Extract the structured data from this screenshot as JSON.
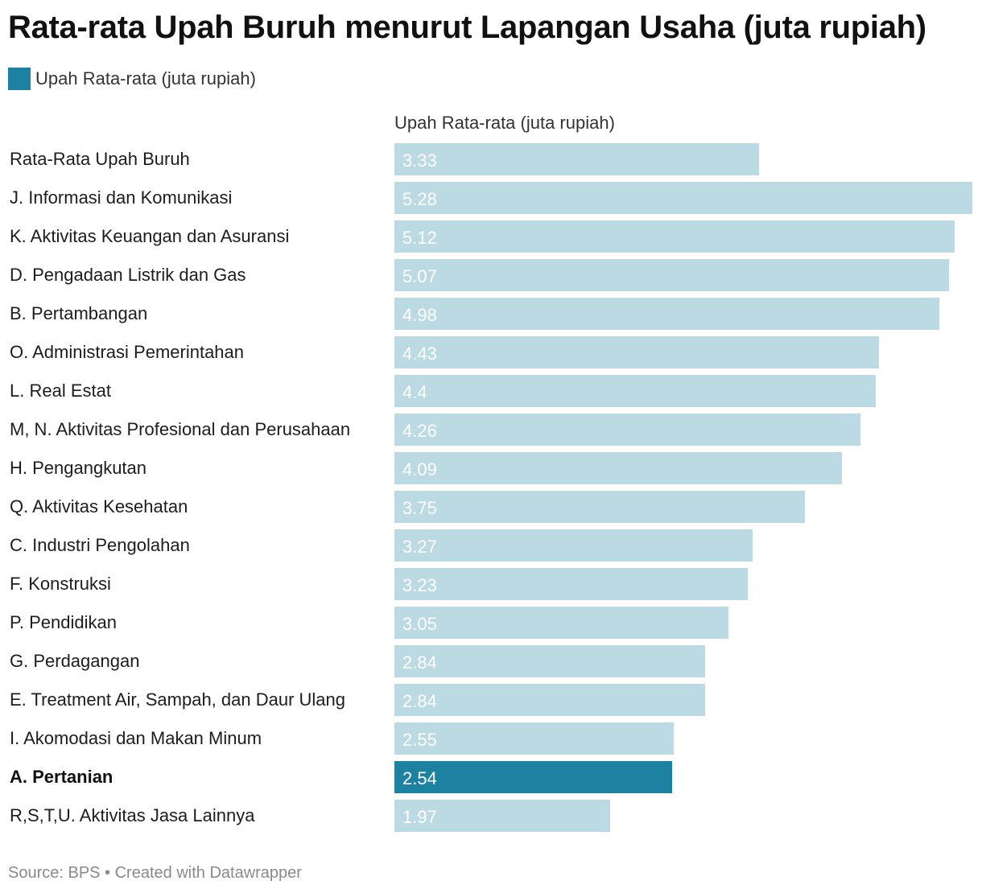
{
  "title": "Rata-rata Upah Buruh menurut Lapangan Usaha (juta rupiah)",
  "legend": {
    "label": "Upah Rata-rata (juta rupiah)",
    "color": "#1d81a2"
  },
  "column_header": "Upah Rata-rata (juta rupiah)",
  "footer": "Source: BPS • Created with Datawrapper",
  "colors": {
    "bar": "#bcdae3",
    "highlight": "#1d81a2"
  },
  "chart_data": {
    "type": "bar",
    "orientation": "horizontal",
    "categories": [
      "Rata-Rata Upah Buruh",
      "J. Informasi dan Komunikasi",
      "K. Aktivitas Keuangan dan Asuransi",
      "D. Pengadaan Listrik dan Gas",
      "B. Pertambangan",
      "O. Administrasi Pemerintahan",
      "L. Real Estat",
      "M, N. Aktivitas Profesional dan Perusahaan",
      "H. Pengangkutan",
      "Q. Aktivitas Kesehatan",
      "C. Industri Pengolahan",
      "F. Konstruksi",
      "P. Pendidikan",
      "G. Perdagangan",
      "E. Treatment Air, Sampah, dan Daur Ulang",
      "I. Akomodasi dan Makan Minum",
      "A. Pertanian",
      "R,S,T,U. Aktivitas Jasa Lainnya"
    ],
    "series": [
      {
        "name": "Upah Rata-rata (juta rupiah)",
        "values": [
          3.33,
          5.28,
          5.12,
          5.07,
          4.98,
          4.43,
          4.4,
          4.26,
          4.09,
          3.75,
          3.27,
          3.23,
          3.05,
          2.84,
          2.84,
          2.55,
          2.54,
          1.97
        ],
        "labels": [
          "3.33",
          "5.28",
          "5.12",
          "5.07",
          "4.98",
          "4.43",
          "4.4",
          "4.26",
          "4.09",
          "3.75",
          "3.27",
          "3.23",
          "3.05",
          "2.84",
          "2.84",
          "2.55",
          "2.54",
          "1.97"
        ]
      }
    ],
    "highlighted": [
      "A. Pertanian"
    ],
    "xlim": [
      0,
      5.28
    ],
    "legend_position": "top-left",
    "grid": false
  }
}
